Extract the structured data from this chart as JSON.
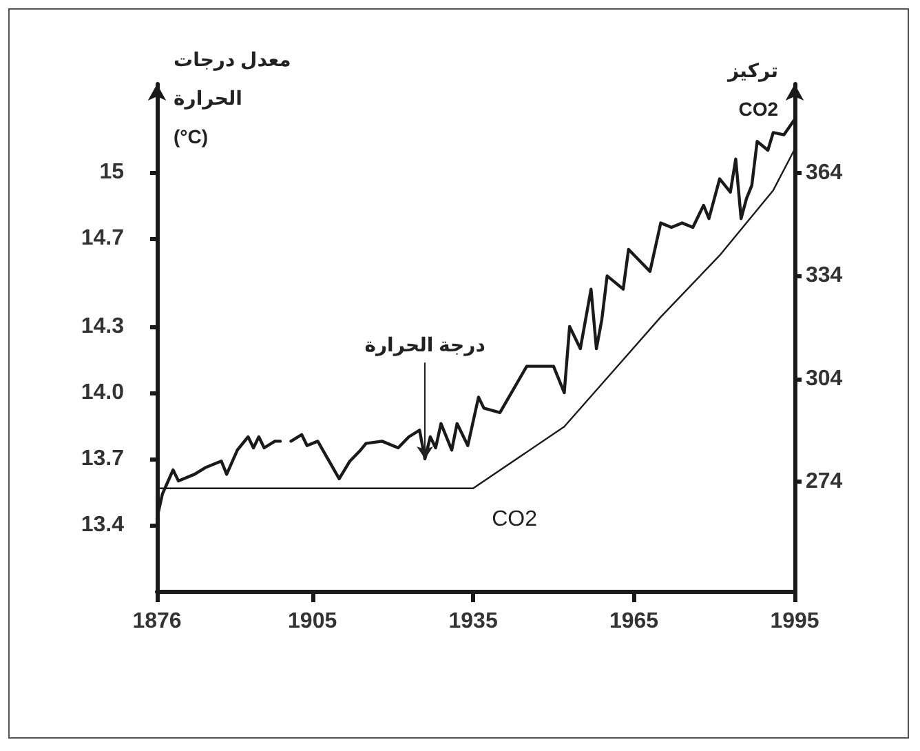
{
  "chart_data": {
    "type": "line",
    "ylabel": "معدل درجات\nالحرارة\n(°C)",
    "y2label": "تركيز\nCO2",
    "xlim": [
      1876,
      1995
    ],
    "xticks": [
      1876,
      1905,
      1935,
      1965,
      1995
    ],
    "ylim": [
      13.1,
      15.4
    ],
    "yticks": [
      13.4,
      13.7,
      {
        "value": 14,
        "label": "14.0"
      },
      14.3,
      14.7,
      15
    ],
    "y2lim": [
      242,
      390
    ],
    "y2ticks": [
      274,
      304,
      334,
      364
    ],
    "grid": false,
    "legend": false,
    "marker": "none",
    "line_style": "solid",
    "series": [
      {
        "name": "درجة الحرارة",
        "color": "#1a1a1a",
        "x": [
          1876,
          1877,
          1879,
          1880,
          1883,
          1885,
          1888,
          1889,
          1891,
          1893,
          1894,
          1895,
          1896,
          1898,
          1899,
          1900,
          1901,
          1903,
          1904,
          1906,
          1910,
          1912,
          1914,
          1915,
          1918,
          1921,
          1923,
          1925,
          1926,
          1927,
          1928,
          1929,
          1931,
          1932,
          1934,
          1936,
          1937,
          1940,
          1945,
          1950,
          1952,
          1953,
          1955,
          1957,
          1958,
          1959,
          1960,
          1963,
          1964,
          1968,
          1970,
          1972,
          1974,
          1976,
          1978,
          1979,
          1981,
          1983,
          1984,
          1985,
          1986,
          1987,
          1988,
          1990,
          1991,
          1993,
          1995
        ],
        "values": [
          13.43,
          13.54,
          13.65,
          13.6,
          13.63,
          13.66,
          13.69,
          13.63,
          13.74,
          13.8,
          13.75,
          13.8,
          13.75,
          13.78,
          13.78,
          null,
          13.78,
          13.81,
          13.76,
          13.78,
          13.61,
          13.69,
          13.74,
          13.77,
          13.78,
          13.75,
          13.8,
          13.83,
          13.7,
          13.8,
          13.75,
          13.86,
          13.74,
          13.86,
          13.76,
          13.98,
          13.93,
          13.91,
          14.12,
          14.12,
          14.0,
          14.3,
          14.2,
          14.47,
          14.2,
          14.33,
          14.53,
          14.47,
          14.65,
          14.55,
          14.77,
          14.75,
          14.77,
          14.75,
          14.85,
          14.79,
          14.97,
          14.91,
          15.06,
          14.79,
          14.88,
          14.94,
          15.14,
          15.1,
          15.18,
          15.17,
          15.24
        ]
      },
      {
        "name": "CO2",
        "color": "#1a1a1a",
        "axis": "y2",
        "x": [
          1876,
          1935,
          1952,
          1961,
          1970,
          1981,
          1991,
          1995
        ],
        "values": [
          272,
          272,
          290,
          306,
          322,
          340,
          359,
          371
        ]
      }
    ]
  }
}
